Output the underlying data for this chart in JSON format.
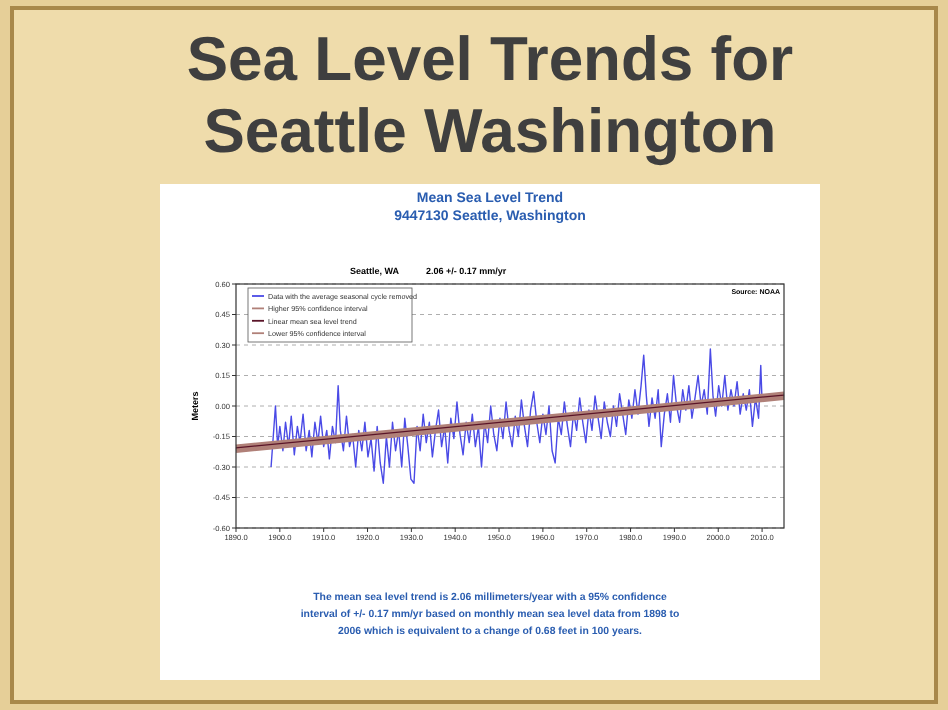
{
  "chart_data": {
    "type": "line",
    "title": "Sea Level Trends for Seattle Washington",
    "subtitle": "Mean Sea Level Trend",
    "ylabel": "Meters",
    "annotations": [
      "9447130 Seattle, Washington",
      "Seattle, WA",
      "2.06 +/- 0.17 mm/yr",
      "Source: NOAA",
      "The mean sea level trend is 2.06 millimeters/year with a 95% confidence interval of +/- 0.17 mm/yr based on monthly mean sea level data from 1898 to 2006 which is equivalent to a change of 0.68 feet in 100 years."
    ],
    "xlim": [
      1890,
      2015
    ],
    "ylim": [
      -0.6,
      0.6
    ],
    "xticks": [
      {
        "value": 1890,
        "label": "1890.0"
      },
      {
        "value": 1900,
        "label": "1900.0"
      },
      {
        "value": 1910,
        "label": "1910.0"
      },
      {
        "value": 1920,
        "label": "1920.0"
      },
      {
        "value": 1930,
        "label": "1930.0"
      },
      {
        "value": 1940,
        "label": "1940.0"
      },
      {
        "value": 1950,
        "label": "1950.0"
      },
      {
        "value": 1960,
        "label": "1960.0"
      },
      {
        "value": 1970,
        "label": "1970.0"
      },
      {
        "value": 1980,
        "label": "1980.0"
      },
      {
        "value": 1990,
        "label": "1990.0"
      },
      {
        "value": 2000,
        "label": "2000.0"
      },
      {
        "value": 2010,
        "label": "2010.0"
      }
    ],
    "yticks": [
      {
        "value": 0.6,
        "label": "0.60"
      },
      {
        "value": 0.45,
        "label": "0.45"
      },
      {
        "value": 0.3,
        "label": "0.30"
      },
      {
        "value": 0.15,
        "label": "0.15"
      },
      {
        "value": 0,
        "label": "0.00"
      },
      {
        "value": -0.15,
        "label": "-0.15"
      },
      {
        "value": -0.3,
        "label": "-0.30"
      },
      {
        "value": -0.45,
        "label": "-0.45"
      },
      {
        "value": -0.6,
        "label": "-0.60"
      }
    ],
    "grid": "y",
    "legend": "top left",
    "marker": "none",
    "line_style": "solid",
    "series": [
      {
        "name": "Data with the average seasonal cycle removed",
        "color": "#4a4ae6",
        "x": [
          1898,
          1898.5,
          1899,
          1899.5,
          1900,
          1900.7,
          1901.3,
          1902,
          1902.6,
          1903.3,
          1904,
          1904.6,
          1905.3,
          1906,
          1906.7,
          1907.3,
          1908,
          1908.7,
          1909.3,
          1910,
          1910.7,
          1911.3,
          1912,
          1912.7,
          1913.3,
          1913.8,
          1914.5,
          1915.2,
          1915.9,
          1916.6,
          1917.3,
          1918,
          1918.7,
          1919.4,
          1920.1,
          1920.8,
          1921.5,
          1922.2,
          1922.9,
          1923.6,
          1924.3,
          1925,
          1925.7,
          1926.4,
          1927.1,
          1927.8,
          1928.5,
          1929.2,
          1929.9,
          1930.6,
          1931.3,
          1932,
          1932.7,
          1933.4,
          1934.1,
          1934.8,
          1935.5,
          1936.2,
          1936.9,
          1937.6,
          1938.3,
          1939,
          1939.7,
          1940.4,
          1941.1,
          1941.8,
          1942.5,
          1943.2,
          1943.9,
          1944.6,
          1945.3,
          1946,
          1946.7,
          1947.4,
          1948.1,
          1948.8,
          1949.5,
          1950.2,
          1950.9,
          1951.6,
          1952.3,
          1953,
          1953.7,
          1954.4,
          1955.1,
          1955.8,
          1956.5,
          1957.2,
          1957.9,
          1958.6,
          1959.3,
          1960,
          1960.7,
          1961.4,
          1962.1,
          1962.8,
          1963.5,
          1964.2,
          1964.9,
          1965.6,
          1966.3,
          1967,
          1967.7,
          1968.4,
          1969.1,
          1969.8,
          1970.5,
          1971.2,
          1971.9,
          1972.6,
          1973.3,
          1974,
          1974.7,
          1975.4,
          1976.1,
          1976.8,
          1977.5,
          1978.2,
          1978.9,
          1979.6,
          1980.3,
          1981,
          1981.7,
          1982.4,
          1983,
          1983.6,
          1984.2,
          1984.9,
          1985.6,
          1986.3,
          1987,
          1987.7,
          1988.4,
          1989.1,
          1989.8,
          1990.5,
          1991.2,
          1991.9,
          1992.6,
          1993.3,
          1994,
          1994.7,
          1995.4,
          1996.1,
          1996.8,
          1997.5,
          1998.2,
          1998.8,
          1999.4,
          2000.1,
          2000.8,
          2001.5,
          2002.2,
          2002.9,
          2003.6,
          2004.3,
          2005,
          2005.7,
          2006.4,
          2007.1,
          2007.8,
          2008.5,
          2009.2,
          2009.7,
          2010
        ],
        "values": [
          -0.3,
          -0.15,
          0.0,
          -0.2,
          -0.1,
          -0.22,
          -0.08,
          -0.2,
          -0.05,
          -0.24,
          -0.1,
          -0.18,
          -0.04,
          -0.22,
          -0.12,
          -0.25,
          -0.08,
          -0.18,
          -0.05,
          -0.2,
          -0.12,
          -0.26,
          -0.1,
          -0.18,
          0.1,
          -0.12,
          -0.22,
          -0.05,
          -0.2,
          -0.14,
          -0.3,
          -0.12,
          -0.22,
          -0.08,
          -0.25,
          -0.16,
          -0.32,
          -0.1,
          -0.28,
          -0.38,
          -0.15,
          -0.3,
          -0.08,
          -0.22,
          -0.12,
          -0.3,
          -0.06,
          -0.2,
          -0.36,
          -0.38,
          -0.1,
          -0.22,
          -0.04,
          -0.18,
          -0.08,
          -0.25,
          -0.12,
          -0.02,
          -0.2,
          -0.1,
          -0.28,
          -0.06,
          -0.16,
          0.02,
          -0.14,
          -0.24,
          -0.08,
          -0.18,
          -0.04,
          -0.2,
          -0.1,
          -0.3,
          -0.08,
          -0.18,
          0.0,
          -0.14,
          -0.22,
          -0.06,
          -0.16,
          0.02,
          -0.12,
          -0.2,
          -0.05,
          -0.15,
          0.03,
          -0.1,
          -0.2,
          -0.02,
          0.07,
          -0.08,
          -0.18,
          -0.04,
          -0.14,
          0.0,
          -0.22,
          -0.28,
          -0.06,
          -0.14,
          0.02,
          -0.1,
          -0.2,
          -0.03,
          -0.12,
          0.04,
          -0.08,
          -0.18,
          -0.02,
          -0.12,
          0.05,
          -0.06,
          -0.16,
          0.02,
          -0.08,
          -0.15,
          0.0,
          -0.1,
          0.06,
          -0.04,
          -0.14,
          0.03,
          -0.06,
          0.08,
          -0.04,
          0.1,
          0.25,
          0.05,
          -0.1,
          0.04,
          -0.06,
          0.08,
          -0.2,
          -0.04,
          0.06,
          -0.08,
          0.15,
          0.0,
          -0.08,
          0.08,
          -0.02,
          0.1,
          -0.06,
          0.04,
          0.15,
          0.0,
          0.08,
          -0.04,
          0.28,
          0.05,
          -0.05,
          0.1,
          0.0,
          0.15,
          -0.02,
          0.08,
          0.0,
          0.12,
          -0.04,
          0.06,
          -0.02,
          0.08,
          -0.1,
          0.04,
          -0.06,
          0.2,
          0.02
        ]
      },
      {
        "name": "Higher 95% confidence interval",
        "color": "#b08078",
        "x": [
          1890,
          2015
        ],
        "values": [
          -0.2,
          0.06
        ]
      },
      {
        "name": "Linear mean sea level trend",
        "color": "#5a1428",
        "x": [
          1890,
          2015
        ],
        "values": [
          -0.21,
          0.05
        ]
      },
      {
        "name": "Lower 95% confidence interval",
        "color": "#b08078",
        "x": [
          1890,
          2015
        ],
        "values": [
          -0.22,
          0.04
        ]
      }
    ]
  }
}
